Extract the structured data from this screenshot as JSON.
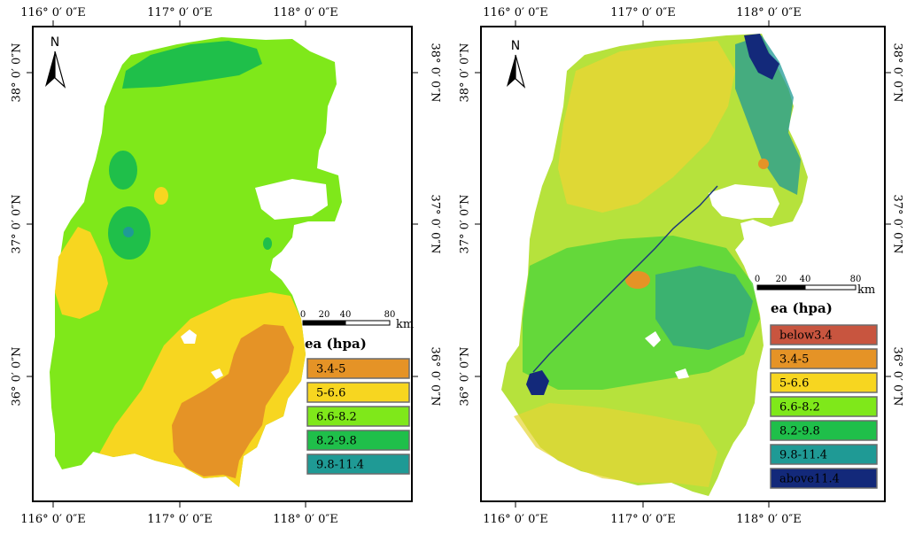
{
  "maps": [
    {
      "north_label": "N",
      "top_ticks": [
        "116° 0′ 0″E",
        "117° 0′ 0″E",
        "118° 0′ 0″E"
      ],
      "bottom_ticks": [
        "116° 0′ 0″E",
        "117° 0′ 0″E",
        "118° 0′ 0″E"
      ],
      "left_ticks": [
        "38° 0′ 0″N",
        "37° 0′ 0″N",
        "36° 0′ 0″N"
      ],
      "right_ticks": [
        "38° 0′ 0″N",
        "37° 0′ 0″N",
        "36° 0′ 0″N"
      ],
      "scale": {
        "labels": [
          "0",
          "20",
          "40",
          "80"
        ],
        "unit": "km"
      },
      "legend": {
        "title": "ea (hpa)",
        "items": [
          {
            "label": "3.4-5",
            "color": "#e59326"
          },
          {
            "label": "5-6.6",
            "color": "#f7d620"
          },
          {
            "label": "6.6-8.2",
            "color": "#7fe81a"
          },
          {
            "label": "8.2-9.8",
            "color": "#1fbf4a"
          },
          {
            "label": "9.8-11.4",
            "color": "#1f9a95"
          }
        ]
      }
    },
    {
      "north_label": "N",
      "top_ticks": [
        "116° 0′ 0″E",
        "117° 0′ 0″E",
        "118° 0′ 0″E"
      ],
      "bottom_ticks": [
        "116° 0′ 0″E",
        "117° 0′ 0″E",
        "118° 0′ 0″E"
      ],
      "left_ticks": [
        "38° 0′ 0″N",
        "37° 0′ 0″N",
        "36° 0′ 0″N"
      ],
      "right_ticks": [
        "38° 0′ 0″N",
        "37° 0′ 0″N",
        "36° 0′ 0″N"
      ],
      "scale": {
        "labels": [
          "0",
          "20",
          "40",
          "80"
        ],
        "unit": "km"
      },
      "legend": {
        "title": "ea (hpa)",
        "items": [
          {
            "label": "below3.4",
            "color": "#c8553f"
          },
          {
            "label": "3.4-5",
            "color": "#e59326"
          },
          {
            "label": "5-6.6",
            "color": "#f7d620"
          },
          {
            "label": "6.6-8.2",
            "color": "#7fe81a"
          },
          {
            "label": "8.2-9.8",
            "color": "#1fbf4a"
          },
          {
            "label": "9.8-11.4",
            "color": "#1f9a95"
          },
          {
            "label": "above11.4",
            "color": "#13297a"
          }
        ]
      }
    }
  ]
}
